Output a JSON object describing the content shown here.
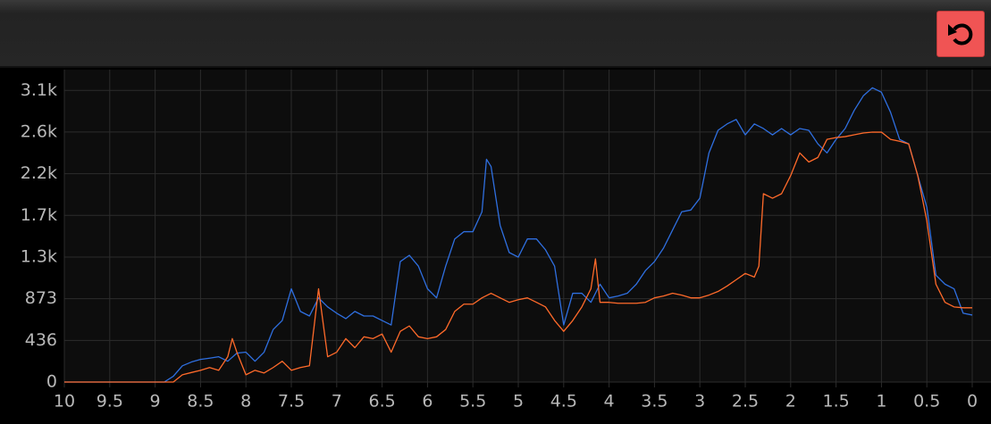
{
  "chart_data": {
    "type": "line",
    "xlim": [
      10,
      0
    ],
    "xticks": [
      10,
      9.5,
      9,
      8.5,
      8,
      7.5,
      7,
      6.5,
      6,
      5.5,
      5,
      4.5,
      4,
      3.5,
      3,
      2.5,
      2,
      1.5,
      1,
      0.5,
      0
    ],
    "ylim": [
      0,
      3273
    ],
    "yticks": [
      0,
      436,
      873,
      {
        "value": 1309,
        "label": "1.3k"
      },
      {
        "value": 1746,
        "label": "1.7k"
      },
      {
        "value": 2182,
        "label": "2.2k"
      },
      {
        "value": 2619,
        "label": "2.6k"
      },
      {
        "value": 3055,
        "label": "3.1k"
      }
    ],
    "grid": true,
    "series": [
      {
        "color": "#2f6fe0",
        "x": [
          10,
          8.9,
          8.8,
          8.7,
          8.6,
          8.5,
          8.4,
          8.3,
          8.2,
          8.1,
          8.0,
          7.9,
          7.8,
          7.7,
          7.6,
          7.5,
          7.4,
          7.3,
          7.2,
          7.1,
          7.0,
          6.9,
          6.8,
          6.7,
          6.6,
          6.5,
          6.4,
          6.3,
          6.2,
          6.1,
          6.0,
          5.9,
          5.8,
          5.7,
          5.6,
          5.5,
          5.4,
          5.35,
          5.3,
          5.2,
          5.1,
          5.0,
          4.9,
          4.8,
          4.7,
          4.6,
          4.5,
          4.4,
          4.3,
          4.2,
          4.1,
          4.0,
          3.9,
          3.8,
          3.7,
          3.6,
          3.5,
          3.4,
          3.3,
          3.2,
          3.1,
          3.0,
          2.9,
          2.8,
          2.7,
          2.6,
          2.5,
          2.4,
          2.3,
          2.2,
          2.1,
          2.0,
          1.9,
          1.8,
          1.7,
          1.6,
          1.5,
          1.4,
          1.3,
          1.2,
          1.1,
          1.0,
          0.9,
          0.8,
          0.7,
          0.6,
          0.5,
          0.4,
          0.3,
          0.2,
          0.1,
          0
        ],
        "values": [
          0,
          0,
          60,
          170,
          210,
          237,
          250,
          265,
          218,
          303,
          313,
          218,
          313,
          550,
          645,
          977,
          740,
          692,
          882,
          787,
          721,
          664,
          740,
          692,
          692,
          645,
          598,
          1262,
          1328,
          1214,
          977,
          882,
          1214,
          1499,
          1575,
          1575,
          1784,
          2334,
          2258,
          1641,
          1357,
          1309,
          1499,
          1499,
          1385,
          1214,
          598,
          930,
          930,
          835,
          1025,
          882,
          901,
          930,
          1025,
          1167,
          1262,
          1404,
          1594,
          1784,
          1802,
          1926,
          2400,
          2637,
          2704,
          2751,
          2590,
          2704,
          2656,
          2590,
          2656,
          2590,
          2656,
          2637,
          2495,
          2400,
          2542,
          2656,
          2846,
          2998,
          3083,
          3036,
          2827,
          2542,
          2495,
          2163,
          1831,
          1119,
          1025,
          977,
          721,
          702
        ]
      },
      {
        "color": "#ff6a2a",
        "x": [
          10,
          8.8,
          8.7,
          8.6,
          8.5,
          8.4,
          8.3,
          8.2,
          8.15,
          8.1,
          8.0,
          7.9,
          7.8,
          7.7,
          7.6,
          7.5,
          7.4,
          7.3,
          7.2,
          7.1,
          7.0,
          6.9,
          6.8,
          6.7,
          6.6,
          6.5,
          6.4,
          6.3,
          6.2,
          6.1,
          6.0,
          5.9,
          5.8,
          5.7,
          5.6,
          5.5,
          5.4,
          5.3,
          5.2,
          5.1,
          5.0,
          4.9,
          4.8,
          4.7,
          4.6,
          4.5,
          4.4,
          4.3,
          4.2,
          4.15,
          4.1,
          4.0,
          3.9,
          3.8,
          3.7,
          3.6,
          3.5,
          3.4,
          3.3,
          3.2,
          3.1,
          3.0,
          2.9,
          2.8,
          2.7,
          2.6,
          2.5,
          2.4,
          2.35,
          2.3,
          2.2,
          2.1,
          2.0,
          1.9,
          1.8,
          1.7,
          1.6,
          1.5,
          1.4,
          1.3,
          1.2,
          1.1,
          1.0,
          0.9,
          0.8,
          0.7,
          0.6,
          0.5,
          0.4,
          0.3,
          0.2,
          0.1,
          0
        ],
        "values": [
          0,
          0,
          76,
          100,
          123,
          152,
          123,
          265,
          455,
          313,
          76,
          123,
          95,
          152,
          218,
          123,
          152,
          171,
          977,
          265,
          313,
          455,
          360,
          474,
          455,
          503,
          313,
          531,
          588,
          474,
          455,
          474,
          550,
          740,
          816,
          816,
          882,
          930,
          882,
          835,
          863,
          882,
          835,
          787,
          645,
          531,
          645,
          787,
          977,
          1290,
          835,
          835,
          825,
          825,
          825,
          835,
          882,
          901,
          930,
          911,
          882,
          882,
          911,
          949,
          1006,
          1072,
          1138,
          1100,
          1214,
          1973,
          1926,
          1973,
          2163,
          2400,
          2305,
          2353,
          2542,
          2561,
          2571,
          2590,
          2609,
          2618,
          2618,
          2542,
          2523,
          2495,
          2163,
          1689,
          1025,
          835,
          787,
          778,
          778
        ]
      }
    ]
  }
}
